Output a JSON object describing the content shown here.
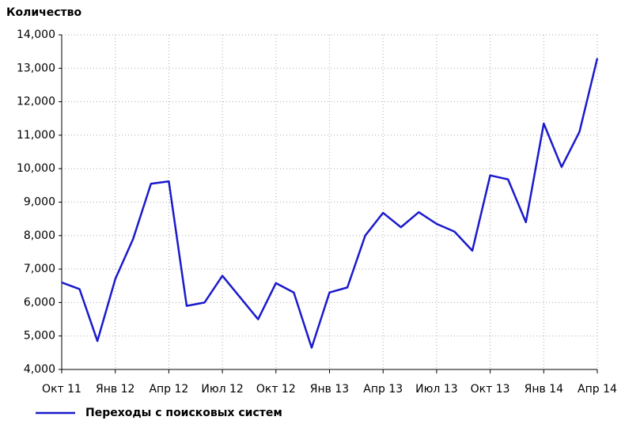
{
  "chart_data": {
    "type": "line",
    "y_label": "Количество",
    "categories": [
      "Окт 11",
      null,
      null,
      "Янв 12",
      null,
      null,
      "Апр 12",
      null,
      null,
      "Июл 12",
      null,
      null,
      "Окт 12",
      null,
      null,
      "Янв 13",
      null,
      null,
      "Апр 13",
      null,
      null,
      "Июл 13",
      null,
      null,
      "Окт 13",
      null,
      null,
      "Янв 14",
      null,
      null,
      "Апр 14"
    ],
    "series": [
      {
        "name": "Переходы с поисковых систем",
        "color": "#1a1acc",
        "values": [
          6600,
          6400,
          4850,
          6700,
          7900,
          9550,
          9620,
          5900,
          6000,
          6800,
          6150,
          5500,
          6580,
          6300,
          4650,
          6300,
          6450,
          8000,
          8680,
          8250,
          8700,
          8350,
          8120,
          7550,
          9800,
          9680,
          8400,
          11350,
          10050,
          11100,
          13300
        ]
      }
    ],
    "ylim": [
      4000,
      14000
    ],
    "yticks": [
      {
        "value": 4000,
        "label": "4,000"
      },
      {
        "value": 5000,
        "label": "5,000"
      },
      {
        "value": 6000,
        "label": "6,000"
      },
      {
        "value": 7000,
        "label": "7,000"
      },
      {
        "value": 8000,
        "label": "8,000"
      },
      {
        "value": 9000,
        "label": "9,000"
      },
      {
        "value": 10000,
        "label": "10,000"
      },
      {
        "value": 11000,
        "label": "11,000"
      },
      {
        "value": 12000,
        "label": "12,000"
      },
      {
        "value": 13000,
        "label": "13,000"
      },
      {
        "value": 14000,
        "label": "14,000"
      }
    ],
    "grid": true,
    "legend": "bottom-left"
  }
}
